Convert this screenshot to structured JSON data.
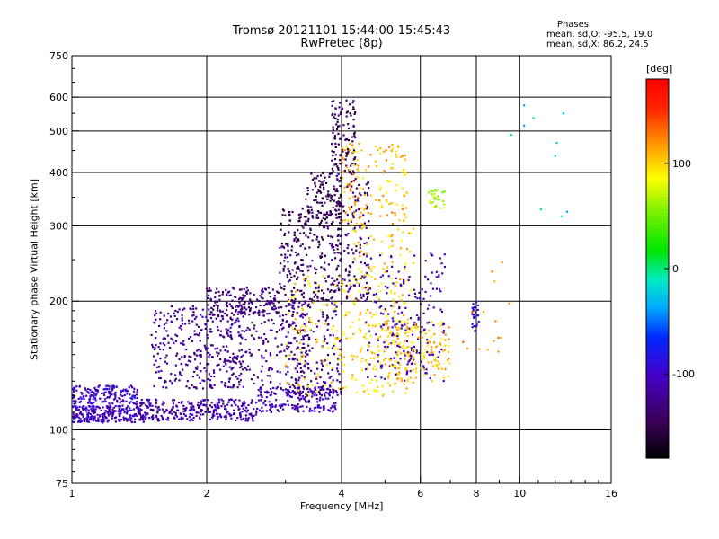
{
  "chart_data": {
    "type": "scatter",
    "title": "Tromsø 20121101 15:44:00-15:45:43",
    "subtitle": "RwPretec (8p)",
    "stats": {
      "heading": "Phases",
      "line1": "mean, sd,O: -95.5, 19.0",
      "line2": "mean, sd,X:  86.2, 24.5"
    },
    "xlabel": "Frequency [MHz]",
    "ylabel": "Stationary phase Virtual Height [km]",
    "x_scale": "log2",
    "y_scale": "log",
    "xlim": [
      1,
      16
    ],
    "ylim": [
      75,
      750
    ],
    "x_ticks": [
      {
        "v": 1,
        "label": "1"
      },
      {
        "v": 2,
        "label": "2"
      },
      {
        "v": 4,
        "label": "4"
      },
      {
        "v": 6,
        "label": "6"
      },
      {
        "v": 8,
        "label": "8"
      },
      {
        "v": 10,
        "label": "10"
      },
      {
        "v": 16,
        "label": "16"
      }
    ],
    "x_grid": [
      2,
      4,
      6,
      8,
      10
    ],
    "y_ticks": [
      {
        "v": 75,
        "label": "75"
      },
      {
        "v": 100,
        "label": "100"
      },
      {
        "v": 200,
        "label": "200"
      },
      {
        "v": 300,
        "label": "300"
      },
      {
        "v": 400,
        "label": "400"
      },
      {
        "v": 500,
        "label": "500"
      },
      {
        "v": 600,
        "label": "600"
      },
      {
        "v": 750,
        "label": "750"
      }
    ],
    "y_grid": [
      100,
      200,
      300,
      400,
      500,
      600
    ],
    "grid": true,
    "colorbar": {
      "label": "[deg]",
      "range": [
        -180,
        180
      ],
      "ticks": [
        {
          "v": 100,
          "label": "100"
        },
        {
          "v": 0,
          "label": "0"
        },
        {
          "v": -100,
          "label": "-100"
        }
      ]
    },
    "clusters": [
      {
        "x": [
          1.0,
          1.45
        ],
        "y": [
          104,
          114
        ],
        "phase": -105,
        "n": 260
      },
      {
        "x": [
          1.0,
          1.4
        ],
        "y": [
          115,
          127
        ],
        "phase": -100,
        "n": 160
      },
      {
        "x": [
          1.4,
          2.6
        ],
        "y": [
          105,
          118
        ],
        "phase": -112,
        "n": 300
      },
      {
        "x": [
          2.6,
          3.9
        ],
        "y": [
          110,
          126
        ],
        "phase": -108,
        "n": 200
      },
      {
        "x": [
          1.5,
          2.4
        ],
        "y": [
          125,
          195
        ],
        "phase": -120,
        "n": 320
      },
      {
        "x": [
          2.0,
          2.9
        ],
        "y": [
          185,
          215
        ],
        "phase": -135,
        "n": 160
      },
      {
        "x": [
          2.2,
          3.4
        ],
        "y": [
          125,
          200
        ],
        "phase": -125,
        "n": 220
      },
      {
        "x": [
          2.9,
          4.0
        ],
        "y": [
          200,
          330
        ],
        "phase": -140,
        "n": 260
      },
      {
        "x": [
          3.3,
          4.0
        ],
        "y": [
          300,
          400
        ],
        "phase": -150,
        "n": 120
      },
      {
        "x": [
          3.8,
          4.3
        ],
        "y": [
          400,
          590
        ],
        "phase": -145,
        "n": 110
      },
      {
        "x": [
          3.9,
          4.6
        ],
        "y": [
          200,
          400
        ],
        "phase": -135,
        "n": 140
      },
      {
        "x": [
          3.0,
          4.0
        ],
        "y": [
          120,
          200
        ],
        "phase": -125,
        "n": 170
      },
      {
        "x": [
          3.0,
          4.2
        ],
        "y": [
          120,
          230
        ],
        "phase": 95,
        "n": 110
      },
      {
        "x": [
          4.0,
          5.6
        ],
        "y": [
          300,
          470
        ],
        "phase": 110,
        "n": 140
      },
      {
        "x": [
          4.2,
          5.8
        ],
        "y": [
          120,
          300
        ],
        "phase": 100,
        "n": 230
      },
      {
        "x": [
          4.5,
          6.8
        ],
        "y": [
          130,
          260
        ],
        "phase": -110,
        "n": 200
      },
      {
        "x": [
          5.0,
          7.0
        ],
        "y": [
          130,
          180
        ],
        "phase": 105,
        "n": 130
      },
      {
        "x": [
          6.2,
          6.8
        ],
        "y": [
          330,
          365
        ],
        "phase": 60,
        "n": 30
      },
      {
        "x": [
          7.8,
          8.1
        ],
        "y": [
          170,
          200
        ],
        "phase": -95,
        "n": 25
      },
      {
        "x": [
          7.4,
          9.5
        ],
        "y": [
          150,
          250
        ],
        "phase": 120,
        "n": 15
      },
      {
        "x": [
          9.5,
          13.0
        ],
        "y": [
          300,
          600
        ],
        "phase": -20,
        "n": 10
      }
    ]
  }
}
